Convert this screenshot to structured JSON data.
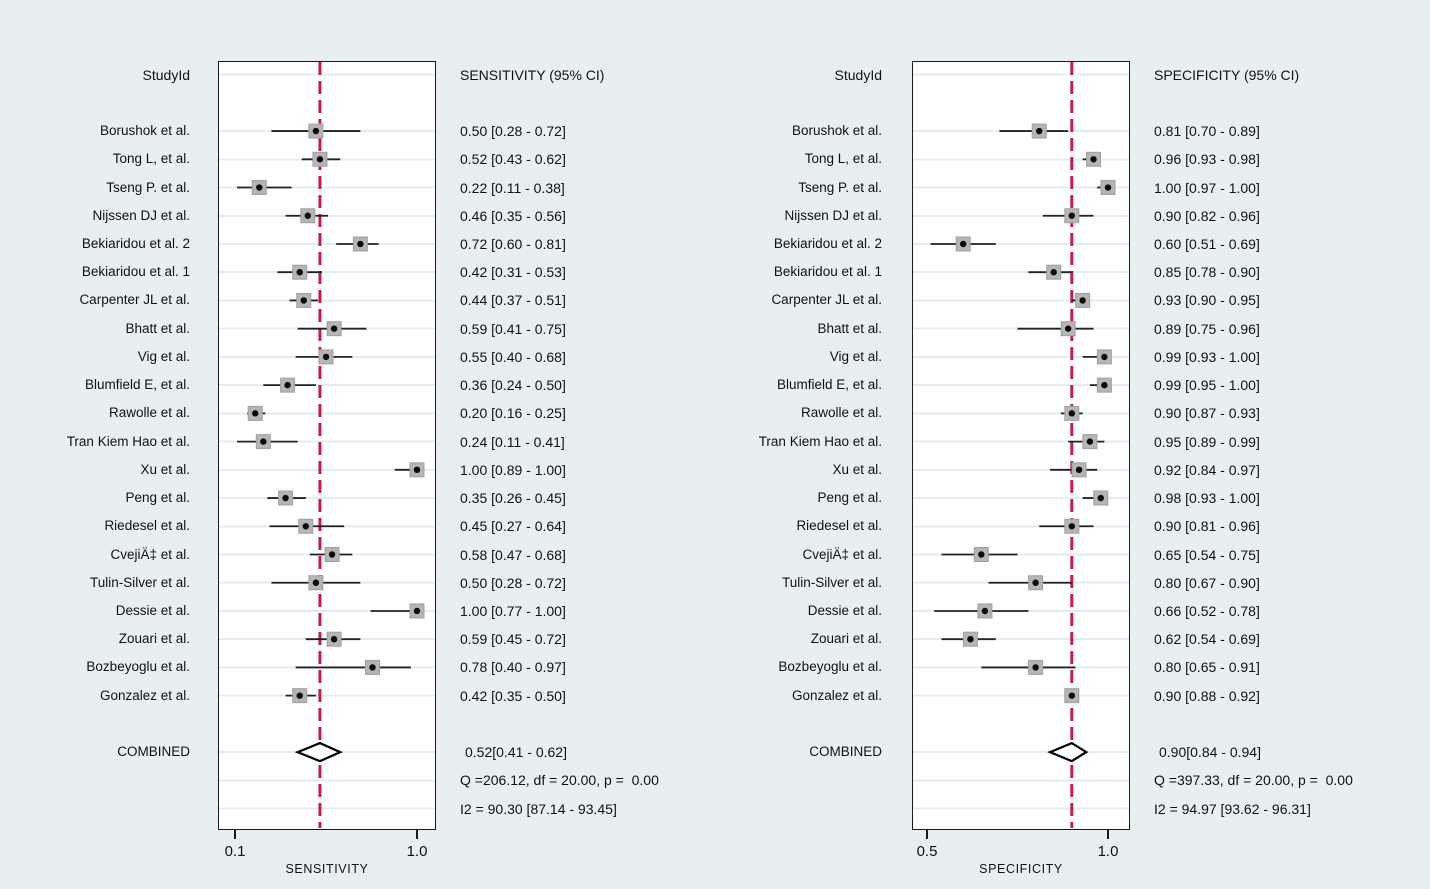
{
  "colors": {
    "background": "#e8eff1",
    "plot_background": "#ffffff",
    "box_border": "#1a1a1a",
    "gridline": "#e2ecf3",
    "pooled_dashed_line": "#c21f45",
    "marker_square_fill": "#b5b5b5",
    "marker_square_border": "#a0a0a0",
    "marker_dot": "#0a0a0a",
    "ci_line": "#222222",
    "diamond_stroke": "#000000",
    "text": "#111111"
  },
  "chart_data": [
    {
      "type": "forest",
      "panel": "sensitivity",
      "header_study": "StudyId",
      "header_value": "SENSITIVITY (95% CI)",
      "xlabel": "SENSITIVITY",
      "xticks": [
        "0.1",
        "1.0"
      ],
      "xtick_values": [
        0.1,
        1.0
      ],
      "xlim": [
        0.016,
        1.094
      ],
      "grid": true,
      "pooled_line": 0.52,
      "studies": [
        {
          "name": "Borushok et al.",
          "est": 0.5,
          "lo": 0.28,
          "hi": 0.72,
          "label": "0.50 [0.28 - 0.72]"
        },
        {
          "name": "Tong L, et al.",
          "est": 0.52,
          "lo": 0.43,
          "hi": 0.62,
          "label": "0.52 [0.43 - 0.62]"
        },
        {
          "name": "Tseng P. et al.",
          "est": 0.22,
          "lo": 0.11,
          "hi": 0.38,
          "label": "0.22 [0.11 - 0.38]"
        },
        {
          "name": "Nijssen DJ et al.",
          "est": 0.46,
          "lo": 0.35,
          "hi": 0.56,
          "label": "0.46 [0.35 - 0.56]"
        },
        {
          "name": "Bekiaridou et al. 2",
          "est": 0.72,
          "lo": 0.6,
          "hi": 0.81,
          "label": "0.72 [0.60 - 0.81]"
        },
        {
          "name": "Bekiaridou et al. 1",
          "est": 0.42,
          "lo": 0.31,
          "hi": 0.53,
          "label": "0.42 [0.31 - 0.53]"
        },
        {
          "name": "Carpenter JL et al.",
          "est": 0.44,
          "lo": 0.37,
          "hi": 0.51,
          "label": "0.44 [0.37 - 0.51]"
        },
        {
          "name": "Bhatt et al.",
          "est": 0.59,
          "lo": 0.41,
          "hi": 0.75,
          "label": "0.59 [0.41 - 0.75]"
        },
        {
          "name": "Vig et al.",
          "est": 0.55,
          "lo": 0.4,
          "hi": 0.68,
          "label": "0.55 [0.40 - 0.68]"
        },
        {
          "name": "Blumfield E, et al.",
          "est": 0.36,
          "lo": 0.24,
          "hi": 0.5,
          "label": "0.36 [0.24 - 0.50]"
        },
        {
          "name": "Rawolle et al.",
          "est": 0.2,
          "lo": 0.16,
          "hi": 0.25,
          "label": "0.20 [0.16 - 0.25]"
        },
        {
          "name": "Tran Kiem Hao et al.",
          "est": 0.24,
          "lo": 0.11,
          "hi": 0.41,
          "label": "0.24 [0.11 - 0.41]"
        },
        {
          "name": "Xu et al.",
          "est": 1.0,
          "lo": 0.89,
          "hi": 1.0,
          "label": "1.00 [0.89 - 1.00]"
        },
        {
          "name": "Peng et al.",
          "est": 0.35,
          "lo": 0.26,
          "hi": 0.45,
          "label": "0.35 [0.26 - 0.45]"
        },
        {
          "name": "Riedesel et al.",
          "est": 0.45,
          "lo": 0.27,
          "hi": 0.64,
          "label": "0.45 [0.27 - 0.64]"
        },
        {
          "name": "CvejiÄ‡ et al.",
          "est": 0.58,
          "lo": 0.47,
          "hi": 0.68,
          "label": "0.58 [0.47 - 0.68]"
        },
        {
          "name": "Tulin-Silver et al.",
          "est": 0.5,
          "lo": 0.28,
          "hi": 0.72,
          "label": "0.50 [0.28 - 0.72]"
        },
        {
          "name": "Dessie et al.",
          "est": 1.0,
          "lo": 0.77,
          "hi": 1.0,
          "label": "1.00 [0.77 - 1.00]"
        },
        {
          "name": "Zouari et al.",
          "est": 0.59,
          "lo": 0.45,
          "hi": 0.72,
          "label": "0.59 [0.45 - 0.72]"
        },
        {
          "name": "Bozbeyoglu et al.",
          "est": 0.78,
          "lo": 0.4,
          "hi": 0.97,
          "label": "0.78 [0.40 - 0.97]"
        },
        {
          "name": "Gonzalez et al.",
          "est": 0.42,
          "lo": 0.35,
          "hi": 0.5,
          "label": "0.42 [0.35 - 0.50]"
        }
      ],
      "combined": {
        "label": "COMBINED",
        "est": 0.52,
        "lo": 0.41,
        "hi": 0.62,
        "text": "0.52[0.41 - 0.62]"
      },
      "heterogeneity_q": "Q =206.12, df = 20.00, p =  0.00",
      "heterogeneity_i2": "I2 = 90.30 [87.14 - 93.45]"
    },
    {
      "type": "forest",
      "panel": "specificity",
      "header_study": "StudyId",
      "header_value": "SPECIFICITY (95% CI)",
      "xlabel": "SPECIFICITY",
      "xticks": [
        "0.5",
        "1.0"
      ],
      "xtick_values": [
        0.5,
        1.0
      ],
      "xlim": [
        0.459,
        1.061
      ],
      "grid": true,
      "pooled_line": 0.9,
      "studies": [
        {
          "name": "Borushok et al.",
          "est": 0.81,
          "lo": 0.7,
          "hi": 0.89,
          "label": "0.81 [0.70 - 0.89]"
        },
        {
          "name": "Tong L, et al.",
          "est": 0.96,
          "lo": 0.93,
          "hi": 0.98,
          "label": "0.96 [0.93 - 0.98]"
        },
        {
          "name": "Tseng P. et al.",
          "est": 1.0,
          "lo": 0.97,
          "hi": 1.0,
          "label": "1.00 [0.97 - 1.00]"
        },
        {
          "name": "Nijssen DJ et al.",
          "est": 0.9,
          "lo": 0.82,
          "hi": 0.96,
          "label": "0.90 [0.82 - 0.96]"
        },
        {
          "name": "Bekiaridou et al. 2",
          "est": 0.6,
          "lo": 0.51,
          "hi": 0.69,
          "label": "0.60 [0.51 - 0.69]"
        },
        {
          "name": "Bekiaridou et al. 1",
          "est": 0.85,
          "lo": 0.78,
          "hi": 0.9,
          "label": "0.85 [0.78 - 0.90]"
        },
        {
          "name": "Carpenter JL et al.",
          "est": 0.93,
          "lo": 0.9,
          "hi": 0.95,
          "label": "0.93 [0.90 - 0.95]"
        },
        {
          "name": "Bhatt et al.",
          "est": 0.89,
          "lo": 0.75,
          "hi": 0.96,
          "label": "0.89 [0.75 - 0.96]"
        },
        {
          "name": "Vig et al.",
          "est": 0.99,
          "lo": 0.93,
          "hi": 1.0,
          "label": "0.99 [0.93 - 1.00]"
        },
        {
          "name": "Blumfield E, et al.",
          "est": 0.99,
          "lo": 0.95,
          "hi": 1.0,
          "label": "0.99 [0.95 - 1.00]"
        },
        {
          "name": "Rawolle et al.",
          "est": 0.9,
          "lo": 0.87,
          "hi": 0.93,
          "label": "0.90 [0.87 - 0.93]"
        },
        {
          "name": "Tran Kiem Hao et al.",
          "est": 0.95,
          "lo": 0.89,
          "hi": 0.99,
          "label": "0.95 [0.89 - 0.99]"
        },
        {
          "name": "Xu et al.",
          "est": 0.92,
          "lo": 0.84,
          "hi": 0.97,
          "label": "0.92 [0.84 - 0.97]"
        },
        {
          "name": "Peng et al.",
          "est": 0.98,
          "lo": 0.93,
          "hi": 1.0,
          "label": "0.98 [0.93 - 1.00]"
        },
        {
          "name": "Riedesel et al.",
          "est": 0.9,
          "lo": 0.81,
          "hi": 0.96,
          "label": "0.90 [0.81 - 0.96]"
        },
        {
          "name": "CvejiÄ‡ et al.",
          "est": 0.65,
          "lo": 0.54,
          "hi": 0.75,
          "label": "0.65 [0.54 - 0.75]"
        },
        {
          "name": "Tulin-Silver et al.",
          "est": 0.8,
          "lo": 0.67,
          "hi": 0.9,
          "label": "0.80 [0.67 - 0.90]"
        },
        {
          "name": "Dessie et al.",
          "est": 0.66,
          "lo": 0.52,
          "hi": 0.78,
          "label": "0.66 [0.52 - 0.78]"
        },
        {
          "name": "Zouari et al.",
          "est": 0.62,
          "lo": 0.54,
          "hi": 0.69,
          "label": "0.62 [0.54 - 0.69]"
        },
        {
          "name": "Bozbeyoglu et al.",
          "est": 0.8,
          "lo": 0.65,
          "hi": 0.91,
          "label": "0.80 [0.65 - 0.91]"
        },
        {
          "name": "Gonzalez et al.",
          "est": 0.9,
          "lo": 0.88,
          "hi": 0.92,
          "label": "0.90 [0.88 - 0.92]"
        }
      ],
      "combined": {
        "label": "COMBINED",
        "est": 0.9,
        "lo": 0.84,
        "hi": 0.94,
        "text": "0.90[0.84 - 0.94]"
      },
      "heterogeneity_q": "Q =397.33, df = 20.00, p =  0.00",
      "heterogeneity_i2": "I2 = 94.97 [93.62 - 96.31]"
    }
  ]
}
